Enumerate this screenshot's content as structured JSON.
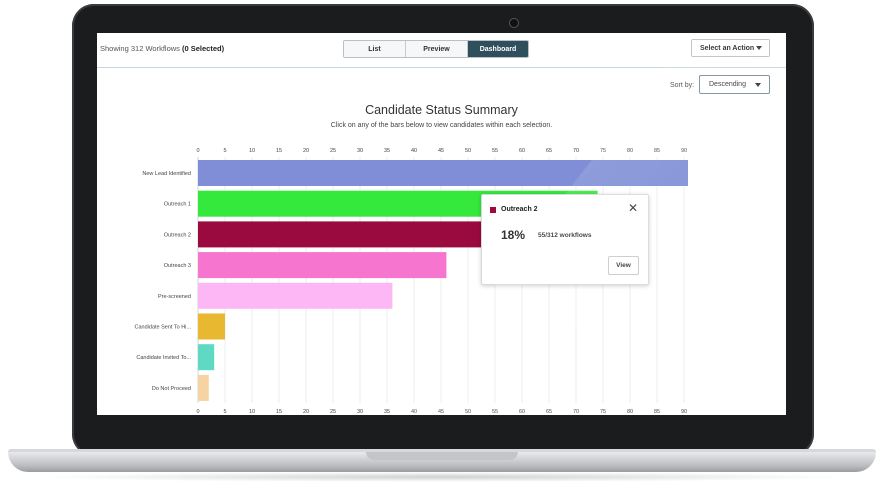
{
  "toolbar": {
    "showing_prefix": "Showing 312 Workflows",
    "showing_selected": "(0 Selected)",
    "views": [
      "List",
      "Preview",
      "Dashboard"
    ],
    "active_view": "Dashboard",
    "action_label": "Select an Action"
  },
  "sort": {
    "label": "Sort by:",
    "value": "Descending"
  },
  "chart_data": {
    "type": "bar",
    "orientation": "horizontal",
    "title": "Candidate Status Summary",
    "subtitle": "Click on any of the bars below to view candidates within each selection.",
    "categories": [
      "New Lead Identified",
      "Outreach 1",
      "Outreach 2",
      "Outreach 3",
      "Pre-screened",
      "Candidate Sent To Hi...",
      "Candidate Invited To...",
      "Do Not Proceed"
    ],
    "values": [
      91,
      74,
      55,
      46,
      36,
      5,
      3,
      2
    ],
    "colors": [
      "#7f8ed6",
      "#35e83c",
      "#9b0a3e",
      "#f575cf",
      "#fdb7f4",
      "#e8b830",
      "#5fd9c3",
      "#f5d3a3"
    ],
    "xlim": [
      0,
      90
    ],
    "xticks": [
      0,
      5,
      10,
      15,
      20,
      25,
      30,
      35,
      40,
      45,
      50,
      55,
      60,
      65,
      70,
      75,
      80,
      85,
      90
    ],
    "grid": true
  },
  "tooltip": {
    "name": "Outreach 2",
    "color": "#9b0a3e",
    "percent": "18%",
    "count": "55/312 workflows",
    "button": "View"
  }
}
